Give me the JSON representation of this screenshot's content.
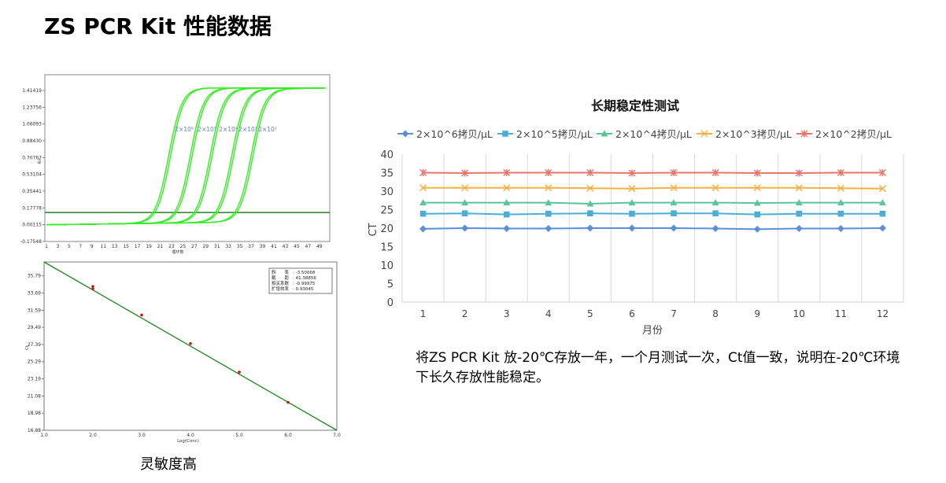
{
  "page": {
    "title": "ZS PCR Kit 性能数据"
  },
  "left_caption": "灵敏度高",
  "description": "将ZS PCR Kit 放-20℃存放一年，一个月测试一次，Ct值一致，说明在-20℃环境下长久存放性能稳定。",
  "chart_data": [
    {
      "type": "line",
      "name": "amplification",
      "ylabel": "Rn",
      "xlabel": "循环数",
      "xlim": [
        1,
        50
      ],
      "ylim": [
        -0.17548,
        1.5
      ],
      "y_ticks": [
        "1.41419",
        "1.23756",
        "1.06093",
        "0.88430",
        "0.70767",
        "0.53104",
        "0.35441",
        "0.17778",
        "0.00115",
        "-0.17548"
      ],
      "x_ticks": [
        "1",
        "3",
        "5",
        "7",
        "9",
        "11",
        "13",
        "15",
        "17",
        "19",
        "21",
        "23",
        "25",
        "27",
        "29",
        "31",
        "33",
        "35",
        "37",
        "39",
        "41",
        "43",
        "45",
        "47",
        "49"
      ],
      "threshold": 0.13,
      "curve_labels": [
        "2×10⁶",
        "2×10⁵",
        "2×10⁴",
        "2×10³",
        "2×10²"
      ],
      "series_midpoints": [
        22.5,
        26.3,
        29.8,
        33.6,
        37.0
      ],
      "series_plateaus": [
        1.42,
        1.415,
        1.41,
        1.405,
        1.4
      ],
      "colors": {
        "curve": "#33ee22",
        "threshold": "#006600"
      }
    },
    {
      "type": "scatter",
      "name": "standard-curve",
      "xlabel": "Log(Conc)",
      "ylabel": "Ct",
      "xlim": [
        1.0,
        7.0
      ],
      "ylim": [
        16.88,
        37.5
      ],
      "x_ticks": [
        "1.0",
        "2.0",
        "3.0",
        "4.0",
        "5.0",
        "6.0",
        "7.0"
      ],
      "y_ticks": [
        "35.79",
        "33.69",
        "31.59",
        "29.49",
        "27.39",
        "25.29",
        "23.19",
        "21.08",
        "18.98",
        "16.88"
      ],
      "points": [
        [
          2.0,
          34.5
        ],
        [
          2.0,
          34.2
        ],
        [
          3.0,
          31.0
        ],
        [
          4.0,
          27.5
        ],
        [
          5.0,
          24.0
        ],
        [
          6.0,
          20.3
        ]
      ],
      "stats": [
        {
          "label": "斜　　率",
          "value": ": -3.50068"
        },
        {
          "label": "截　　距",
          "value": ": 41.38856"
        },
        {
          "label": "相关系数",
          "value": ": -0.99975"
        },
        {
          "label": "扩增效率",
          "value": ": 0.93045"
        }
      ],
      "colors": {
        "line": "#1a8a1a",
        "point": "#cc1111"
      }
    },
    {
      "type": "line",
      "name": "stability",
      "title": "长期稳定性测试",
      "xlabel": "月份",
      "ylabel": "CT",
      "categories": [
        "1",
        "2",
        "3",
        "4",
        "5",
        "6",
        "7",
        "8",
        "9",
        "10",
        "11",
        "12"
      ],
      "ylim": [
        0,
        40
      ],
      "y_ticks": [
        0,
        5,
        10,
        15,
        20,
        25,
        30,
        35,
        40
      ],
      "legend_position": "top",
      "series": [
        {
          "name": "2×10^6拷贝/μL",
          "color": "#5b8fd6",
          "marker": "diamond",
          "values": [
            19.8,
            20.0,
            19.9,
            19.9,
            20.0,
            20.0,
            20.0,
            19.9,
            19.7,
            19.9,
            19.9,
            20.0
          ]
        },
        {
          "name": "2×10^5拷贝/μL",
          "color": "#4aaed6",
          "marker": "square",
          "values": [
            23.9,
            24.0,
            23.7,
            23.9,
            24.0,
            23.9,
            24.0,
            24.0,
            23.7,
            23.9,
            23.9,
            23.9
          ]
        },
        {
          "name": "2×10^4拷贝/μL",
          "color": "#5bc49a",
          "marker": "triangle",
          "values": [
            26.9,
            26.9,
            26.9,
            26.9,
            26.6,
            26.9,
            26.9,
            26.9,
            26.8,
            26.9,
            26.9,
            26.9
          ]
        },
        {
          "name": "2×10^3拷贝/μL",
          "color": "#f5b041",
          "marker": "x",
          "values": [
            30.9,
            30.9,
            30.9,
            30.9,
            30.8,
            30.7,
            30.9,
            30.9,
            30.9,
            30.9,
            30.8,
            30.7
          ]
        },
        {
          "name": "2×10^2拷贝/μL",
          "color": "#e8766c",
          "marker": "star",
          "values": [
            35.0,
            34.9,
            35.0,
            35.0,
            35.0,
            34.9,
            35.0,
            35.0,
            34.9,
            34.9,
            35.0,
            35.0
          ]
        }
      ]
    }
  ]
}
